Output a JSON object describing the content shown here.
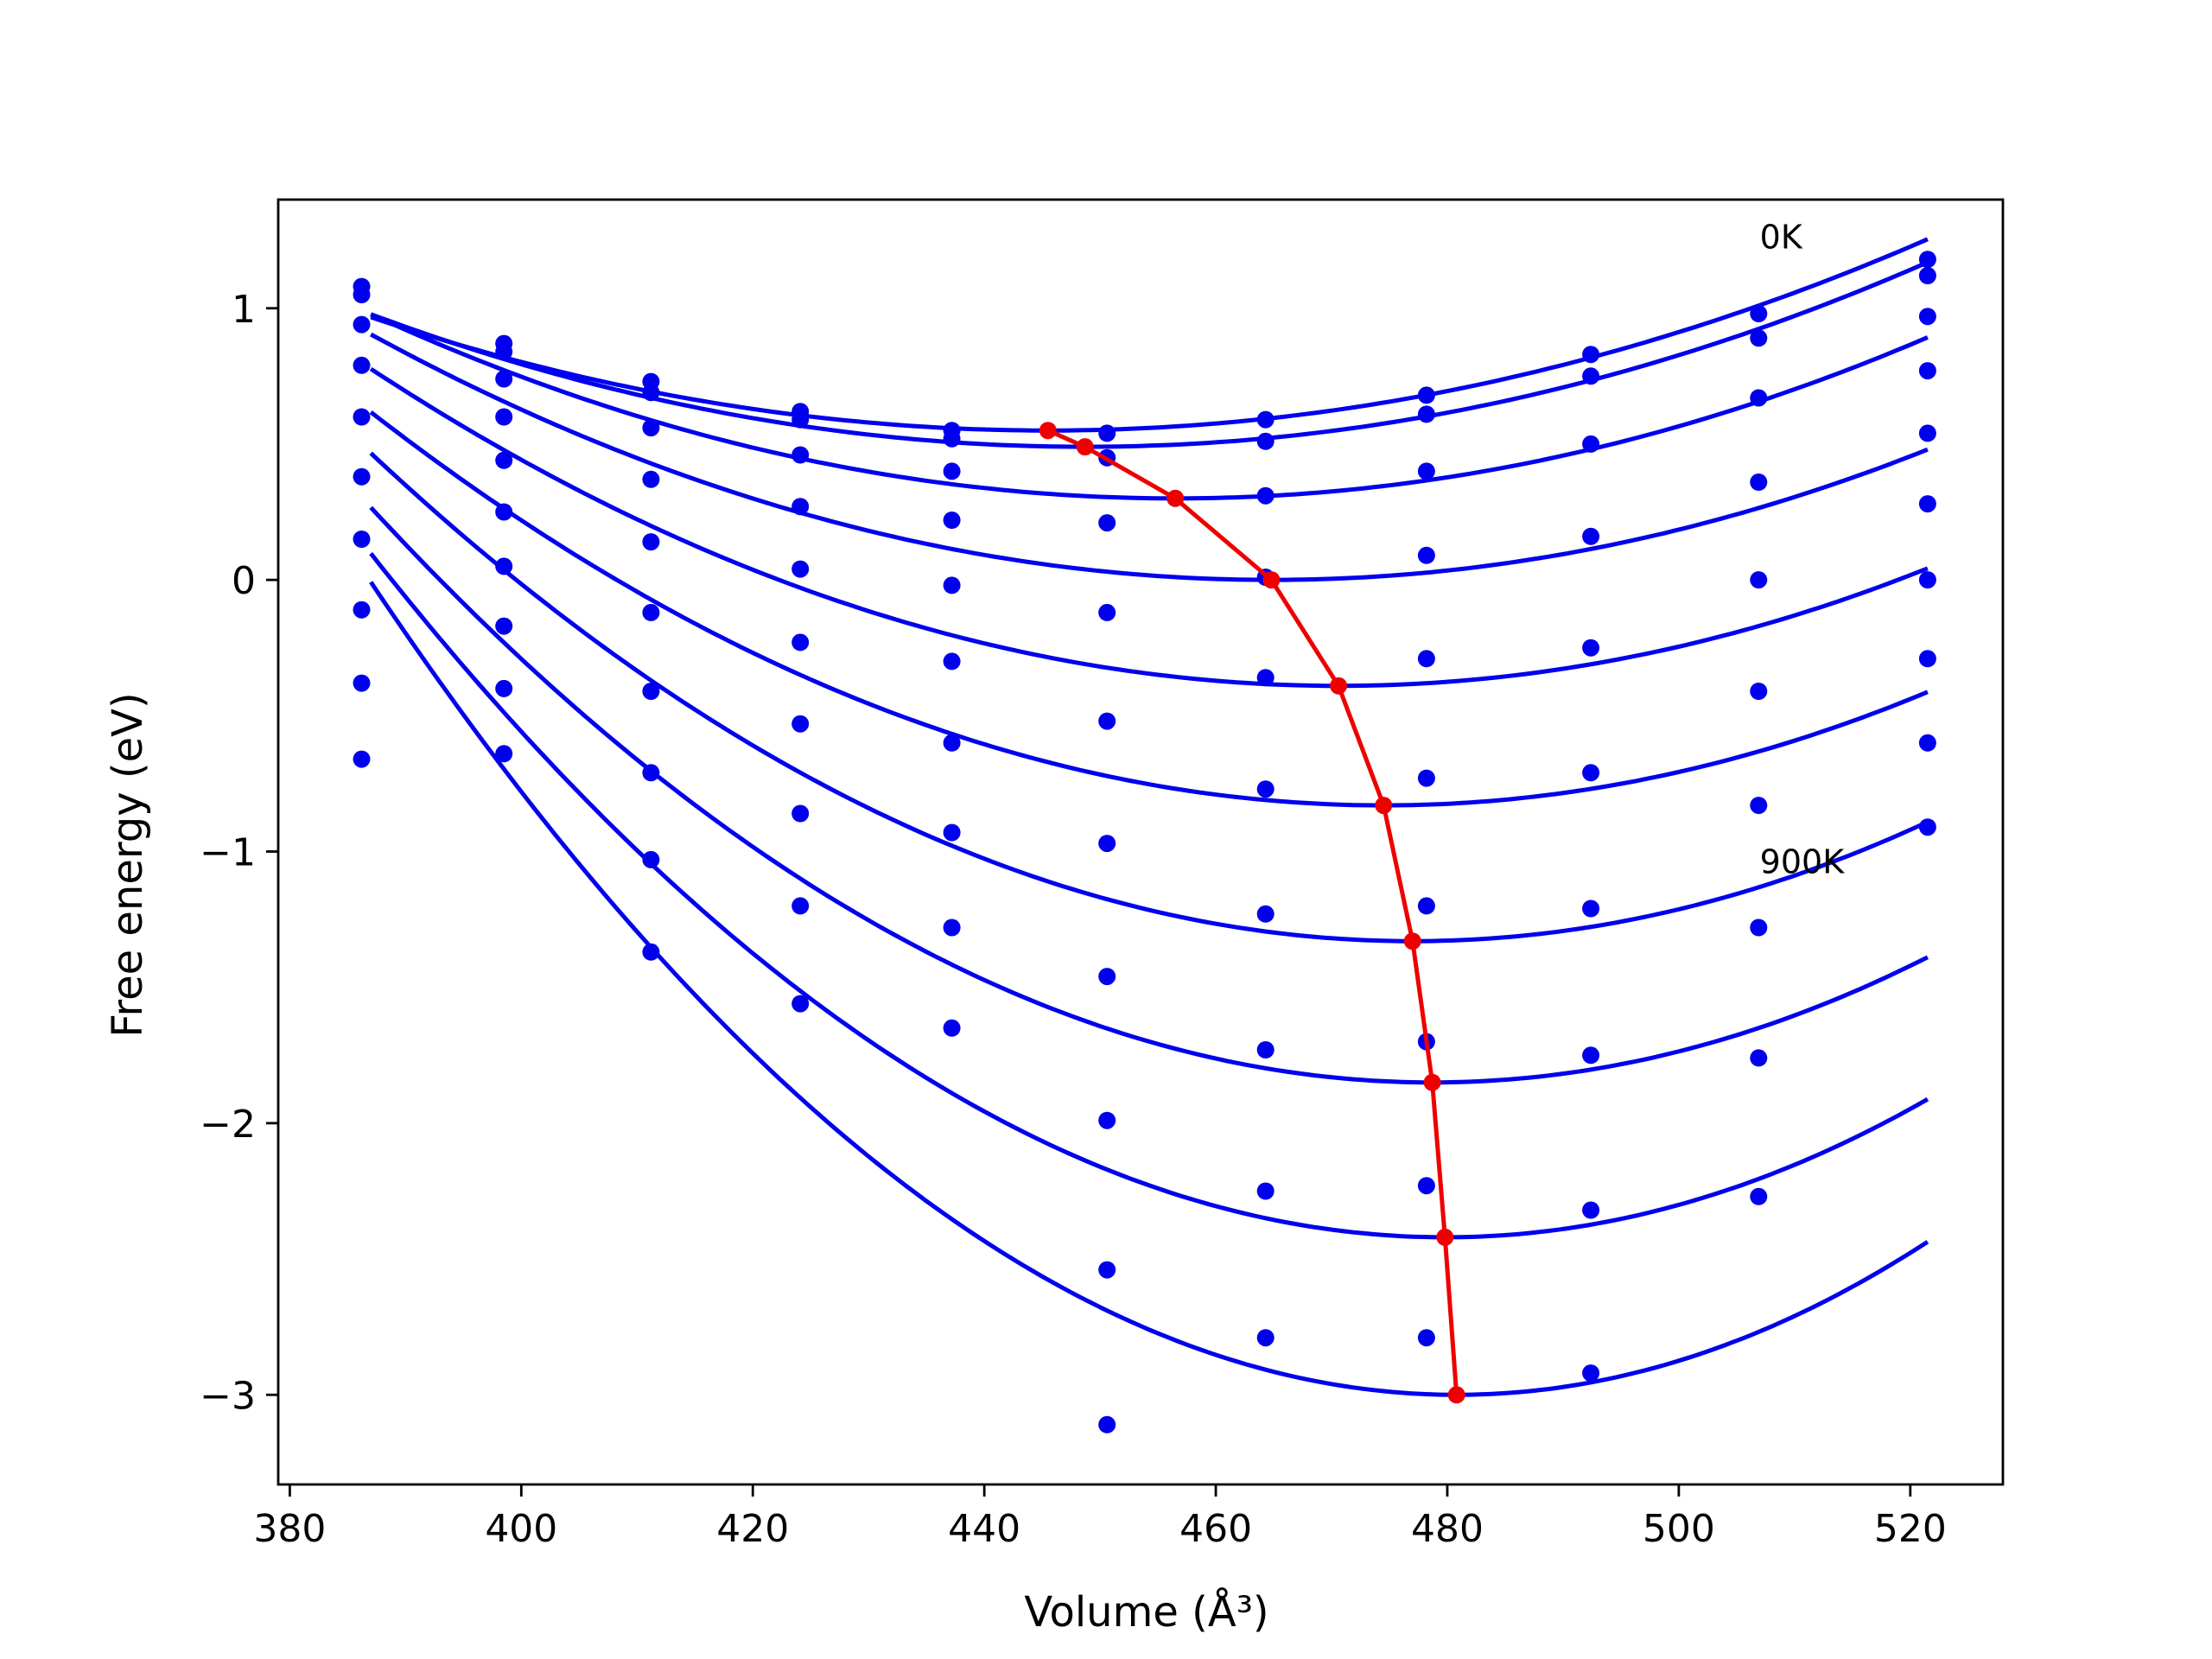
{
  "chart_data": {
    "type": "line",
    "xlabel": "Volume (Å³)",
    "ylabel": "Free energy (eV)",
    "xlim": [
      379,
      528
    ],
    "ylim": [
      -3.33,
      1.4
    ],
    "xticks": [
      "380",
      "400",
      "420",
      "440",
      "460",
      "480",
      "500",
      "520"
    ],
    "yticks": [
      "1",
      "0",
      "−1",
      "−2",
      "−3"
    ],
    "grid": false,
    "annotations": [
      {
        "text": "0K",
        "x": 507,
        "y": 1.22
      },
      {
        "text": "900K",
        "x": 507,
        "y": -1.08
      }
    ],
    "colors": {
      "fit": "#0000ee",
      "points": "#0000ee",
      "minimum": "#ee0000",
      "frame": "#000000"
    },
    "x": [
      386.2,
      398.5,
      411.2,
      424.1,
      437.2,
      450.6,
      464.3,
      478.2,
      492.4,
      506.9,
      521.5
    ],
    "series": [
      {
        "points": [
          1.08,
          0.87,
          0.73,
          0.62,
          0.55,
          0.54,
          0.59,
          0.68,
          0.83,
          0.98,
          1.18
        ],
        "min": [
          445.5,
          0.55
        ]
      },
      {
        "points": [
          1.05,
          0.84,
          0.69,
          0.59,
          0.52,
          0.45,
          0.51,
          0.61,
          0.75,
          0.89,
          1.12
        ],
        "min": [
          448.7,
          0.49
        ]
      },
      {
        "points": [
          0.94,
          0.74,
          0.56,
          0.46,
          0.4,
          0.21,
          0.31,
          0.4,
          0.5,
          0.67,
          0.97
        ],
        "min": [
          456.5,
          0.3
        ]
      },
      {
        "points": [
          0.79,
          0.6,
          0.37,
          0.27,
          0.22,
          -0.12,
          0.01,
          0.09,
          0.16,
          0.36,
          0.77
        ],
        "min": [
          464.8,
          0.0
        ]
      },
      {
        "points": [
          0.6,
          0.44,
          0.14,
          0.04,
          -0.02,
          -0.52,
          -0.36,
          -0.29,
          -0.25,
          0.0,
          0.54
        ],
        "min": [
          470.6,
          -0.39
        ]
      },
      {
        "points": [
          0.38,
          0.25,
          -0.12,
          -0.23,
          -0.3,
          -0.97,
          -0.77,
          -0.73,
          -0.71,
          -0.41,
          0.28
        ],
        "min": [
          474.5,
          -0.83
        ]
      },
      {
        "points": [
          0.15,
          0.05,
          -0.41,
          -0.53,
          -0.6,
          -1.46,
          -1.23,
          -1.2,
          -1.21,
          -0.83,
          0.0
        ],
        "min": [
          477.0,
          -1.33
        ]
      },
      {
        "points": [
          -0.11,
          -0.17,
          -0.71,
          -0.86,
          -0.93,
          -2.54,
          -1.73,
          -1.7,
          -1.75,
          -1.28,
          -0.29
        ],
        "min": [
          478.7,
          -1.85
        ]
      },
      {
        "points": [
          -0.38,
          -0.4,
          -1.03,
          -1.2,
          -1.28,
          -3.11,
          -2.25,
          -2.23,
          -2.32,
          -1.76,
          -0.6
        ],
        "min": [
          479.8,
          -2.42
        ]
      },
      {
        "points": [
          -0.66,
          -0.64,
          -1.37,
          -1.56,
          -1.65,
          -1.99,
          -2.79,
          -2.79,
          -2.92,
          -2.27,
          -0.91
        ],
        "min": [
          480.8,
          -3.0
        ]
      }
    ]
  }
}
